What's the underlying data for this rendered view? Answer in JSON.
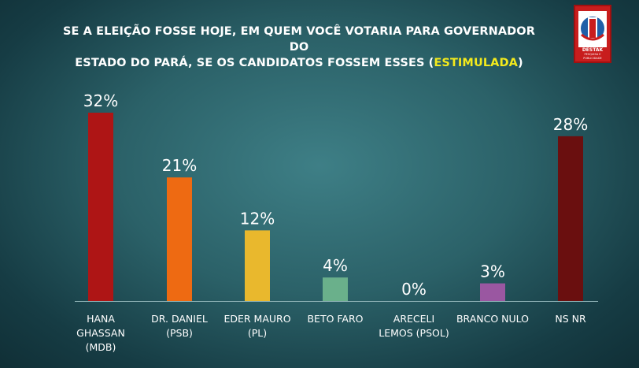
{
  "title": {
    "line1": "SE A ELEIÇÃO FOSSE HOJE, EM QUEM VOCÊ VOTARIA PARA GOVERNADOR DO",
    "line2_prefix": "ESTADO DO PARÁ, SE OS CANDIDATOS FOSSEM ESSES (",
    "line2_highlight": "ESTIMULADA",
    "line2_suffix": ")"
  },
  "logo": {
    "name": "DESTAK",
    "tagline": "PESQUISA E PUBLICIDADE",
    "color": "#c81d1d"
  },
  "chart_data": {
    "type": "bar",
    "categories": [
      [
        "HANA",
        "GHASSAN",
        "(MDB)"
      ],
      [
        "DR. DANIEL",
        "(PSB)"
      ],
      [
        "EDER MAURO",
        "(PL)"
      ],
      [
        "BETO FARO"
      ],
      [
        "ARECELI",
        "LEMOS (PSOL)"
      ],
      [
        "BRANCO NULO"
      ],
      [
        "NS NR"
      ]
    ],
    "values": [
      32,
      21,
      12,
      4,
      0,
      3,
      28
    ],
    "value_labels": [
      "32%",
      "21%",
      "12%",
      "4%",
      "0%",
      "3%",
      "28%"
    ],
    "colors": [
      "#ae1515",
      "#ee6a12",
      "#e9b82d",
      "#6ab08b",
      "#2d6a70",
      "#9a57a1",
      "#6a0f0f"
    ],
    "ylim": [
      0,
      32
    ],
    "grid": false,
    "legend": "none"
  }
}
